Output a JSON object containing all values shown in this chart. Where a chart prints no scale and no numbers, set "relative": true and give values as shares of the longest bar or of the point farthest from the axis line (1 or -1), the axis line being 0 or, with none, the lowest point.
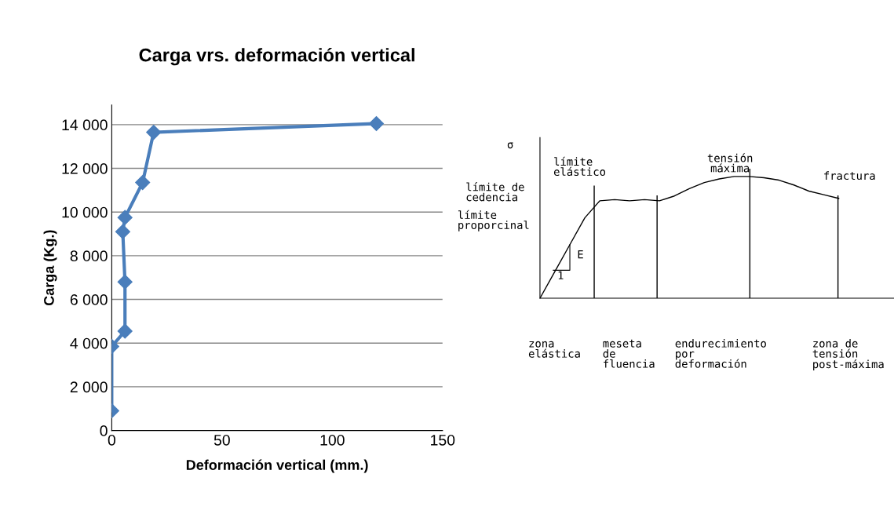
{
  "chart_data": [
    {
      "type": "line",
      "title": "Carga vrs. deformación vertical",
      "xlabel": "Deformación vertical (mm.)",
      "ylabel": "Carga (Kg.)",
      "series": [
        {
          "color": "#4a7ebb",
          "x": [
            0,
            0,
            6,
            6,
            5,
            6,
            14,
            19,
            120
          ],
          "values": [
            900,
            3850,
            4550,
            6800,
            9100,
            9750,
            11350,
            13650,
            14050
          ]
        }
      ],
      "xlim": [
        0,
        150
      ],
      "xticks": [
        0,
        50,
        100,
        150
      ],
      "ylim": [
        0,
        14900
      ],
      "yticks": [
        0,
        {
          "value": 2000,
          "label": "2 000"
        },
        {
          "value": 4000,
          "label": "4 000"
        },
        {
          "value": 6000,
          "label": "6 000"
        },
        {
          "value": 8000,
          "label": "8 000"
        },
        {
          "value": 10000,
          "label": "10 000"
        },
        {
          "value": 12000,
          "label": "12 000"
        },
        {
          "value": 14000,
          "label": "14 000"
        }
      ],
      "grid": "y",
      "marker": "diamond",
      "line_style": "solid",
      "legend": false
    },
    {
      "type": "line",
      "relative": true,
      "tick_labels": false,
      "marker": "none",
      "line_style": "solid",
      "categories": [
        null,
        null,
        null,
        null,
        null,
        null,
        null,
        null,
        null,
        null,
        null,
        null,
        null,
        null,
        null,
        null,
        null,
        null,
        null,
        null,
        null
      ],
      "series": [
        {
          "color": "#000000",
          "values": [
            0,
            0.22,
            0.44,
            0.66,
            0.8,
            0.81,
            0.8,
            0.81,
            0.8,
            0.84,
            0.9,
            0.95,
            0.98,
            1.0,
            1.0,
            0.99,
            0.97,
            0.93,
            0.88,
            0.85,
            0.82
          ]
        }
      ],
      "annotations": [
        "σ",
        "límite\nelástico",
        "límite de\ncedencia",
        "límite\nproporcinal",
        "tensión\nmáxima",
        "fractura",
        "E",
        "1",
        "zona\nelástica",
        "meseta\nde\nfluencia",
        "endurecimiento\npor\ndeformación",
        "zona de\ntensión\npost-máxima"
      ]
    }
  ]
}
